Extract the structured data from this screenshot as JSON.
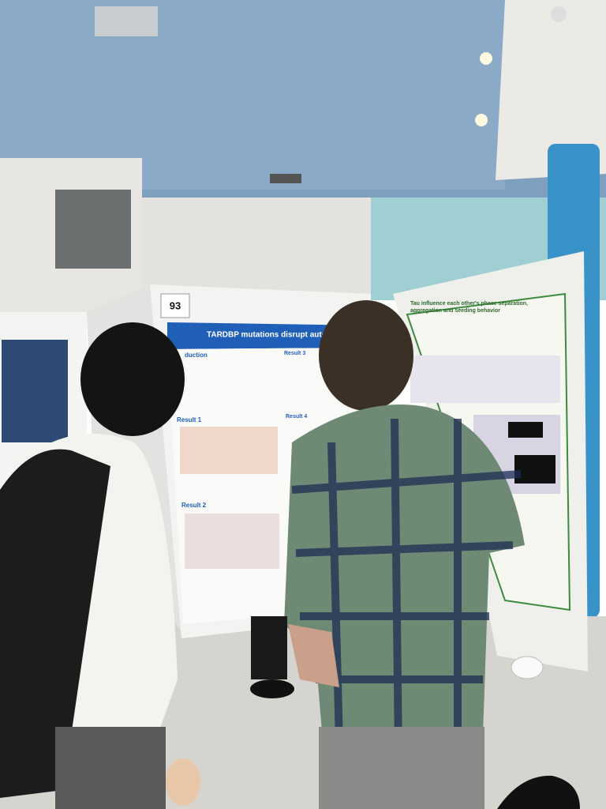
{
  "board_number": "93",
  "left_poster": {
    "title": "TARDBP mutations disrupt autoregulation as a",
    "sections": [
      "duction",
      "Result 1",
      "Result 2",
      "Result 3",
      "Result 4"
    ]
  },
  "right_poster": {
    "title": "Tau influence each other's phase separation, aggregation and seeding behavior"
  }
}
